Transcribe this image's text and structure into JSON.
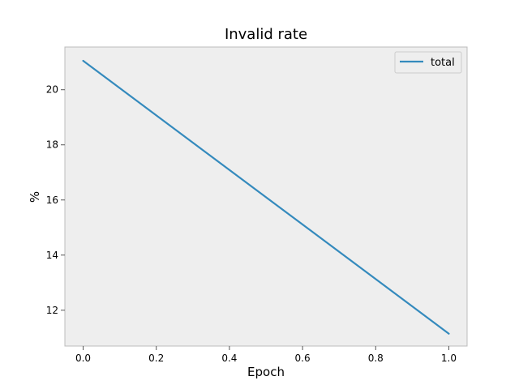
{
  "chart_data": {
    "type": "line",
    "title": "Invalid rate",
    "xlabel": "Epoch",
    "ylabel": "%",
    "xlim": [
      -0.05,
      1.05
    ],
    "ylim": [
      10.7,
      21.55
    ],
    "xticks": [
      0.0,
      0.2,
      0.4,
      0.6,
      0.8,
      1.0
    ],
    "xtick_labels": [
      "0.0",
      "0.2",
      "0.4",
      "0.6",
      "0.8",
      "1.0"
    ],
    "yticks": [
      12,
      14,
      16,
      18,
      20
    ],
    "ytick_labels": [
      "12",
      "14",
      "16",
      "18",
      "20"
    ],
    "grid": false,
    "legend_position": "top-right",
    "series": [
      {
        "name": "total",
        "color": "#348ABD",
        "x": [
          0.0,
          1.0
        ],
        "y": [
          21.05,
          11.15
        ]
      }
    ]
  },
  "colors": {
    "plot_background": "#EEEEEE",
    "axes_edge": "#BCBCBC",
    "tick_color": "#555555"
  }
}
